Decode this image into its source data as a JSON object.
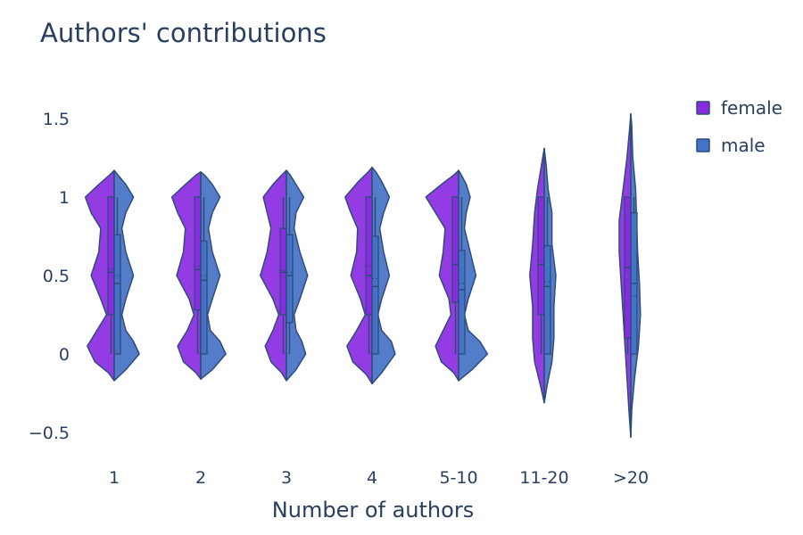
{
  "chart_data": {
    "type": "violin",
    "title": "Authors' contributions",
    "xlabel": "Number of authors",
    "ylabel": "",
    "ylim": [
      -0.65,
      1.75
    ],
    "yticks": [
      -0.5,
      0,
      0.5,
      1,
      1.5
    ],
    "ytick_labels": [
      "−0.5",
      "0",
      "0.5",
      "1",
      "1.5"
    ],
    "categories": [
      "1",
      "2",
      "3",
      "4",
      "5-10",
      "11-20",
      ">20"
    ],
    "legend_position": "top-right",
    "grid": false,
    "series": [
      {
        "name": "female",
        "side": "negative",
        "color": "#8a2be2",
        "boxes": [
          {
            "q1": 0.25,
            "median": 0.52,
            "q3": 1.0,
            "lower": 0,
            "upper": 1,
            "mean": 0.54
          },
          {
            "q1": 0.28,
            "median": 0.54,
            "q3": 1.0,
            "lower": 0,
            "upper": 1,
            "mean": 0.56
          },
          {
            "q1": 0.25,
            "median": 0.52,
            "q3": 0.8,
            "lower": 0,
            "upper": 1,
            "mean": 0.53
          },
          {
            "q1": 0.25,
            "median": 0.5,
            "q3": 1.0,
            "lower": 0,
            "upper": 1,
            "mean": 0.56
          },
          {
            "q1": 0.33,
            "median": 0.57,
            "q3": 1.0,
            "lower": 0,
            "upper": 1,
            "mean": 0.59
          },
          {
            "q1": 0.25,
            "median": 0.57,
            "q3": 1.0,
            "lower": 0,
            "upper": 1,
            "mean": 0.6
          },
          {
            "q1": 0.1,
            "median": 0.55,
            "q3": 1.0,
            "lower": 0,
            "upper": 1,
            "mean": 0.62
          }
        ],
        "violins": [
          {
            "ymin": -0.17,
            "ymax": 1.17,
            "profile": [
              [
                -0.17,
                0
              ],
              [
                -0.12,
                0.06
              ],
              [
                -0.05,
                0.2
              ],
              [
                0.05,
                0.28
              ],
              [
                0.15,
                0.18
              ],
              [
                0.25,
                0.08
              ],
              [
                0.35,
                0.14
              ],
              [
                0.5,
                0.24
              ],
              [
                0.65,
                0.16
              ],
              [
                0.8,
                0.14
              ],
              [
                0.9,
                0.24
              ],
              [
                1.0,
                0.3
              ],
              [
                1.08,
                0.16
              ],
              [
                1.14,
                0.05
              ],
              [
                1.17,
                0
              ]
            ]
          },
          {
            "ymin": -0.16,
            "ymax": 1.16,
            "profile": [
              [
                -0.16,
                0
              ],
              [
                -0.12,
                0.05
              ],
              [
                -0.05,
                0.18
              ],
              [
                0.05,
                0.24
              ],
              [
                0.15,
                0.14
              ],
              [
                0.25,
                0.07
              ],
              [
                0.35,
                0.12
              ],
              [
                0.5,
                0.25
              ],
              [
                0.65,
                0.18
              ],
              [
                0.8,
                0.16
              ],
              [
                0.9,
                0.24
              ],
              [
                1.0,
                0.3
              ],
              [
                1.08,
                0.16
              ],
              [
                1.14,
                0.05
              ],
              [
                1.16,
                0
              ]
            ]
          },
          {
            "ymin": -0.17,
            "ymax": 1.17,
            "profile": [
              [
                -0.17,
                0
              ],
              [
                -0.12,
                0.05
              ],
              [
                -0.05,
                0.16
              ],
              [
                0.05,
                0.22
              ],
              [
                0.15,
                0.14
              ],
              [
                0.25,
                0.08
              ],
              [
                0.35,
                0.14
              ],
              [
                0.5,
                0.27
              ],
              [
                0.65,
                0.2
              ],
              [
                0.8,
                0.16
              ],
              [
                0.9,
                0.2
              ],
              [
                1.0,
                0.24
              ],
              [
                1.08,
                0.14
              ],
              [
                1.14,
                0.05
              ],
              [
                1.17,
                0
              ]
            ]
          },
          {
            "ymin": -0.19,
            "ymax": 1.19,
            "profile": [
              [
                -0.19,
                0
              ],
              [
                -0.13,
                0.06
              ],
              [
                -0.05,
                0.2
              ],
              [
                0.05,
                0.26
              ],
              [
                0.15,
                0.16
              ],
              [
                0.25,
                0.07
              ],
              [
                0.35,
                0.12
              ],
              [
                0.5,
                0.22
              ],
              [
                0.65,
                0.16
              ],
              [
                0.8,
                0.15
              ],
              [
                0.9,
                0.22
              ],
              [
                1.0,
                0.28
              ],
              [
                1.1,
                0.14
              ],
              [
                1.16,
                0.04
              ],
              [
                1.19,
                0
              ]
            ]
          },
          {
            "ymin": -0.17,
            "ymax": 1.17,
            "profile": [
              [
                -0.17,
                0
              ],
              [
                -0.12,
                0.05
              ],
              [
                -0.05,
                0.18
              ],
              [
                0.05,
                0.24
              ],
              [
                0.15,
                0.16
              ],
              [
                0.25,
                0.08
              ],
              [
                0.35,
                0.1
              ],
              [
                0.5,
                0.2
              ],
              [
                0.65,
                0.16
              ],
              [
                0.8,
                0.14
              ],
              [
                0.9,
                0.24
              ],
              [
                1.0,
                0.34
              ],
              [
                1.08,
                0.18
              ],
              [
                1.14,
                0.05
              ],
              [
                1.17,
                0
              ]
            ]
          },
          {
            "ymin": -0.31,
            "ymax": 1.31,
            "profile": [
              [
                -0.31,
                0
              ],
              [
                -0.2,
                0.04
              ],
              [
                -0.05,
                0.1
              ],
              [
                0.1,
                0.12
              ],
              [
                0.3,
                0.12
              ],
              [
                0.5,
                0.15
              ],
              [
                0.7,
                0.12
              ],
              [
                0.9,
                0.1
              ],
              [
                1.05,
                0.07
              ],
              [
                1.2,
                0.03
              ],
              [
                1.31,
                0
              ]
            ]
          },
          {
            "ymin": -0.53,
            "ymax": 1.53,
            "profile": [
              [
                -0.53,
                0
              ],
              [
                -0.35,
                0.02
              ],
              [
                -0.15,
                0.04
              ],
              [
                0.05,
                0.06
              ],
              [
                0.25,
                0.08
              ],
              [
                0.45,
                0.1
              ],
              [
                0.65,
                0.12
              ],
              [
                0.85,
                0.12
              ],
              [
                1.05,
                0.08
              ],
              [
                1.25,
                0.04
              ],
              [
                1.45,
                0.01
              ],
              [
                1.53,
                0
              ]
            ]
          }
        ]
      },
      {
        "name": "male",
        "side": "positive",
        "color": "#4472c4",
        "boxes": [
          {
            "q1": 0,
            "median": 0.45,
            "q3": 0.76,
            "lower": 0,
            "upper": 1,
            "mean": 0.5
          },
          {
            "q1": 0,
            "median": 0.47,
            "q3": 0.72,
            "lower": 0,
            "upper": 1,
            "mean": 0.5
          },
          {
            "q1": 0.2,
            "median": 0.5,
            "q3": 0.76,
            "lower": 0,
            "upper": 1,
            "mean": 0.52
          },
          {
            "q1": 0,
            "median": 0.43,
            "q3": 0.75,
            "lower": 0,
            "upper": 1,
            "mean": 0.48
          },
          {
            "q1": 0,
            "median": 0.41,
            "q3": 0.66,
            "lower": 0,
            "upper": 1,
            "mean": 0.45
          },
          {
            "q1": 0,
            "median": 0.43,
            "q3": 0.69,
            "lower": 0,
            "upper": 1,
            "mean": 0.46
          },
          {
            "q1": 0,
            "median": 0.45,
            "q3": 0.9,
            "lower": 0,
            "upper": 1,
            "mean": 0.37
          }
        ],
        "violins": [
          {
            "ymin": -0.17,
            "ymax": 1.17,
            "profile": [
              [
                -0.17,
                0
              ],
              [
                -0.1,
                0.12
              ],
              [
                0,
                0.26
              ],
              [
                0.08,
                0.2
              ],
              [
                0.15,
                0.12
              ],
              [
                0.25,
                0.08
              ],
              [
                0.35,
                0.12
              ],
              [
                0.5,
                0.2
              ],
              [
                0.65,
                0.12
              ],
              [
                0.8,
                0.08
              ],
              [
                0.9,
                0.12
              ],
              [
                1.0,
                0.2
              ],
              [
                1.08,
                0.12
              ],
              [
                1.14,
                0.04
              ],
              [
                1.17,
                0
              ]
            ]
          },
          {
            "ymin": -0.16,
            "ymax": 1.16,
            "profile": [
              [
                -0.16,
                0
              ],
              [
                -0.1,
                0.12
              ],
              [
                0,
                0.26
              ],
              [
                0.08,
                0.2
              ],
              [
                0.15,
                0.1
              ],
              [
                0.25,
                0.07
              ],
              [
                0.35,
                0.12
              ],
              [
                0.5,
                0.2
              ],
              [
                0.65,
                0.12
              ],
              [
                0.8,
                0.08
              ],
              [
                0.9,
                0.12
              ],
              [
                1.0,
                0.2
              ],
              [
                1.08,
                0.12
              ],
              [
                1.14,
                0.04
              ],
              [
                1.16,
                0
              ]
            ]
          },
          {
            "ymin": -0.17,
            "ymax": 1.17,
            "profile": [
              [
                -0.17,
                0
              ],
              [
                -0.1,
                0.1
              ],
              [
                0,
                0.2
              ],
              [
                0.08,
                0.16
              ],
              [
                0.15,
                0.1
              ],
              [
                0.25,
                0.08
              ],
              [
                0.35,
                0.14
              ],
              [
                0.5,
                0.22
              ],
              [
                0.65,
                0.14
              ],
              [
                0.8,
                0.08
              ],
              [
                0.9,
                0.1
              ],
              [
                1.0,
                0.18
              ],
              [
                1.08,
                0.1
              ],
              [
                1.14,
                0.04
              ],
              [
                1.17,
                0
              ]
            ]
          },
          {
            "ymin": -0.19,
            "ymax": 1.19,
            "profile": [
              [
                -0.19,
                0
              ],
              [
                -0.12,
                0.1
              ],
              [
                0,
                0.24
              ],
              [
                0.08,
                0.2
              ],
              [
                0.15,
                0.1
              ],
              [
                0.25,
                0.06
              ],
              [
                0.35,
                0.1
              ],
              [
                0.5,
                0.18
              ],
              [
                0.65,
                0.12
              ],
              [
                0.8,
                0.08
              ],
              [
                0.9,
                0.12
              ],
              [
                1.0,
                0.18
              ],
              [
                1.1,
                0.1
              ],
              [
                1.16,
                0.04
              ],
              [
                1.19,
                0
              ]
            ]
          },
          {
            "ymin": -0.17,
            "ymax": 1.17,
            "profile": [
              [
                -0.17,
                0
              ],
              [
                -0.1,
                0.14
              ],
              [
                0,
                0.3
              ],
              [
                0.08,
                0.22
              ],
              [
                0.15,
                0.1
              ],
              [
                0.25,
                0.06
              ],
              [
                0.35,
                0.1
              ],
              [
                0.5,
                0.18
              ],
              [
                0.65,
                0.12
              ],
              [
                0.8,
                0.06
              ],
              [
                0.9,
                0.08
              ],
              [
                1.0,
                0.12
              ],
              [
                1.08,
                0.08
              ],
              [
                1.14,
                0.03
              ],
              [
                1.17,
                0
              ]
            ]
          },
          {
            "ymin": -0.31,
            "ymax": 1.31,
            "profile": [
              [
                -0.31,
                0
              ],
              [
                -0.2,
                0.03
              ],
              [
                -0.05,
                0.08
              ],
              [
                0.1,
                0.1
              ],
              [
                0.3,
                0.1
              ],
              [
                0.5,
                0.12
              ],
              [
                0.7,
                0.08
              ],
              [
                0.9,
                0.08
              ],
              [
                1.05,
                0.04
              ],
              [
                1.2,
                0.02
              ],
              [
                1.31,
                0
              ]
            ]
          },
          {
            "ymin": -0.53,
            "ymax": 1.53,
            "profile": [
              [
                -0.53,
                0
              ],
              [
                -0.35,
                0.01
              ],
              [
                -0.15,
                0.04
              ],
              [
                0.05,
                0.08
              ],
              [
                0.25,
                0.1
              ],
              [
                0.45,
                0.09
              ],
              [
                0.65,
                0.07
              ],
              [
                0.85,
                0.06
              ],
              [
                1.05,
                0.05
              ],
              [
                1.25,
                0.02
              ],
              [
                1.45,
                0.01
              ],
              [
                1.53,
                0
              ]
            ]
          }
        ]
      }
    ]
  }
}
